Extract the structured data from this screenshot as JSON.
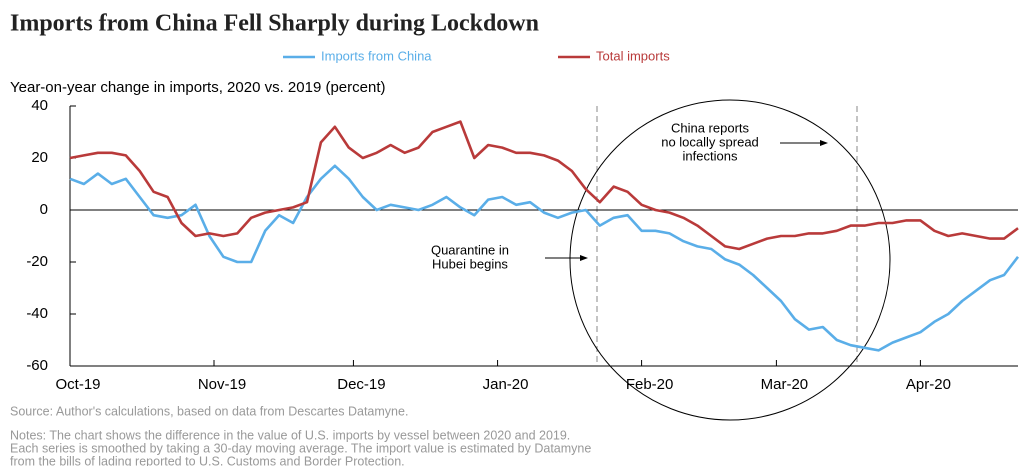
{
  "chart_data": {
    "type": "line",
    "title": "Imports from China Fell Sharply during Lockdown",
    "y_label": "Year-on-year change in imports, 2020 vs. 2019 (percent)",
    "series": [
      {
        "name": "Imports from China",
        "color": "#5aaee8",
        "values": [
          12,
          10,
          14,
          10,
          12,
          5,
          -2,
          -3,
          -2,
          2,
          -10,
          -18,
          -20,
          -20,
          -8,
          -2,
          -5,
          5,
          12,
          17,
          12,
          5,
          0,
          2,
          1,
          0,
          2,
          5,
          1,
          -2,
          4,
          5,
          2,
          3,
          -1,
          -3,
          -1,
          0,
          -6,
          -3,
          -2,
          -8,
          -8,
          -9,
          -12,
          -14,
          -15,
          -19,
          -21,
          -25,
          -30,
          -35,
          -42,
          -46,
          -45,
          -50,
          -52,
          -53,
          -54,
          -51,
          -49,
          -47,
          -43,
          -40,
          -35,
          -31,
          -27,
          -25,
          -18
        ]
      },
      {
        "name": "Total imports",
        "color": "#b93a3a",
        "values": [
          20,
          21,
          22,
          22,
          21,
          15,
          7,
          5,
          -5,
          -10,
          -9,
          -10,
          -9,
          -3,
          -1,
          0,
          1,
          3,
          26,
          32,
          24,
          20,
          22,
          25,
          22,
          24,
          30,
          32,
          34,
          20,
          25,
          24,
          22,
          22,
          21,
          19,
          15,
          8,
          3,
          9,
          7,
          2,
          0,
          -1,
          -3,
          -6,
          -10,
          -14,
          -15,
          -13,
          -11,
          -10,
          -10,
          -9,
          -9,
          -8,
          -6,
          -6,
          -5,
          -5,
          -4,
          -4,
          -8,
          -10,
          -9,
          -10,
          -11,
          -11,
          -7
        ]
      }
    ],
    "xlim": [
      0,
      68
    ],
    "xticks": [
      {
        "value": 0,
        "label": "Oct-19"
      },
      {
        "value": 10.33,
        "label": "Nov-19"
      },
      {
        "value": 20.33,
        "label": "Dec-19"
      },
      {
        "value": 30.67,
        "label": "Jan-20"
      },
      {
        "value": 41,
        "label": "Feb-20"
      },
      {
        "value": 50.67,
        "label": "Mar-20"
      },
      {
        "value": 61,
        "label": "Apr-20"
      }
    ],
    "ylim": [
      -60,
      40
    ],
    "yticks": [
      -60,
      -40,
      -20,
      0,
      20,
      40
    ],
    "annotations": [
      {
        "lines": [
          "China reports",
          "no locally spread",
          "infections"
        ]
      },
      {
        "lines": [
          "Quarantine in",
          "Hubei begins"
        ]
      }
    ],
    "source": "Source: Author's calculations, based on data from Descartes Datamyne.",
    "notes": [
      "Notes: The chart shows the difference in the value of U.S. imports by vessel between 2020 and 2019.",
      "Each series is smoothed by taking a 30-day moving average. The import value is estimated by Datamyne",
      "from the bills of lading reported to U.S. Customs and Border Protection."
    ]
  }
}
